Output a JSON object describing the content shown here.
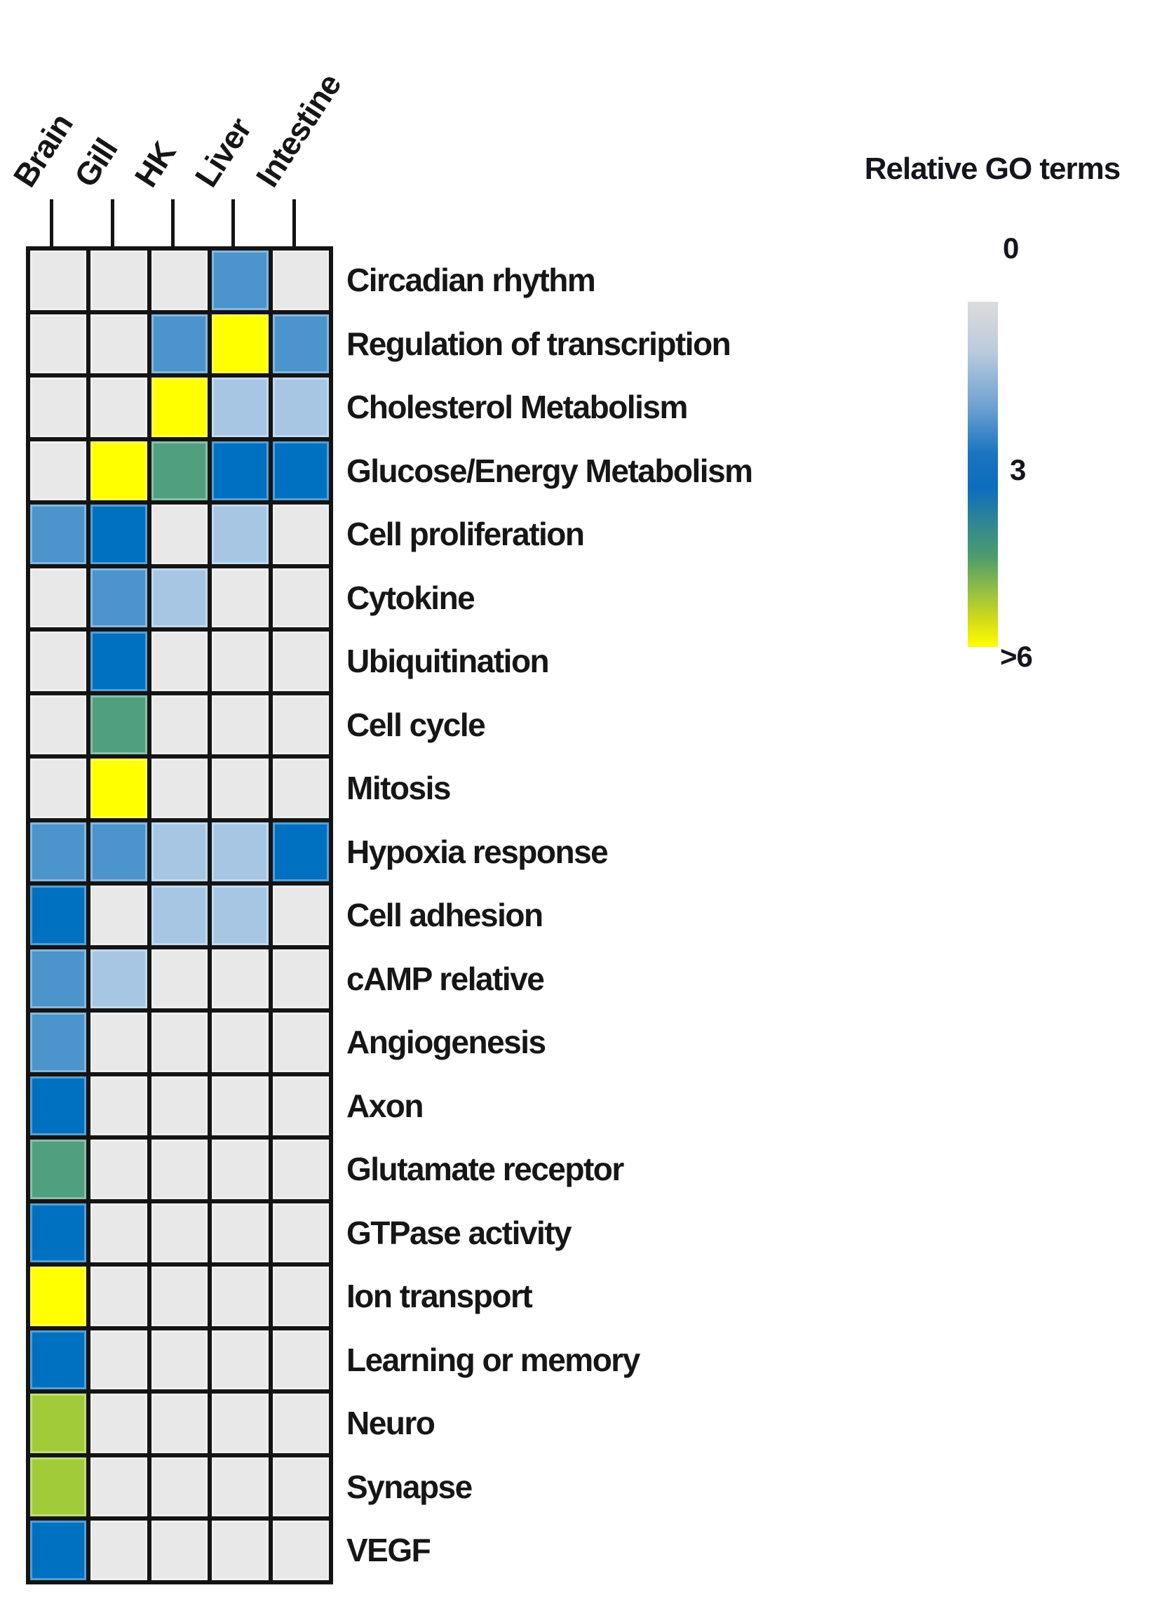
{
  "chart_data": {
    "type": "heatmap",
    "title": "Relative GO terms",
    "columns": [
      "Brain",
      "Gill",
      "HK",
      "Liver",
      "Intestine"
    ],
    "rows": [
      "Circadian rhythm",
      "Regulation of transcription",
      "Cholesterol Metabolism",
      "Glucose/Energy Metabolism",
      "Cell proliferation",
      "Cytokine",
      "Ubiquitination",
      "Cell cycle",
      "Mitosis",
      "Hypoxia response",
      "Cell adhesion",
      "cAMP relative",
      "Angiogenesis",
      "Axon",
      "Glutamate receptor",
      "GTPase activity",
      "Ion transport",
      "Learning or memory",
      "Neuro",
      "Synapse",
      "VEGF"
    ],
    "values": [
      [
        0,
        0,
        0,
        2,
        0
      ],
      [
        0,
        0,
        2,
        7,
        2
      ],
      [
        0,
        0,
        7,
        1,
        1
      ],
      [
        0,
        7,
        4.5,
        3,
        3
      ],
      [
        2,
        3,
        0,
        1,
        0
      ],
      [
        0,
        2,
        1,
        0,
        0
      ],
      [
        0,
        3,
        0,
        0,
        0
      ],
      [
        0,
        4.5,
        0,
        0,
        0
      ],
      [
        0,
        7,
        0,
        0,
        0
      ],
      [
        2,
        2,
        1,
        1,
        3
      ],
      [
        3,
        0,
        1,
        1,
        0
      ],
      [
        2,
        1,
        0,
        0,
        0
      ],
      [
        2,
        0,
        0,
        0,
        0
      ],
      [
        3,
        0,
        0,
        0,
        0
      ],
      [
        4.5,
        0,
        0,
        0,
        0
      ],
      [
        3,
        0,
        0,
        0,
        0
      ],
      [
        7,
        0,
        0,
        0,
        0
      ],
      [
        3,
        0,
        0,
        0,
        0
      ],
      [
        5.5,
        0,
        0,
        0,
        0
      ],
      [
        5.5,
        0,
        0,
        0,
        0
      ],
      [
        3,
        0,
        0,
        0,
        0
      ]
    ],
    "value_colors": {
      "0": "#E8E8E8",
      "1": "#A6C6E4",
      "2": "#4B94CC",
      "3": "#0070C0",
      "4.5": "#50A080",
      "5.5": "#A2CB3A",
      "7": "#FFFF00"
    },
    "colorbar": {
      "top_label": "0",
      "mid_label": "3",
      "bottom_label": ">6",
      "gradient": [
        "#DCDCDC 0%",
        "#BCCBDC 14%",
        "#6FA3D2 30%",
        "#1B74C0 44%",
        "#0C6DBE 54%",
        "#2F8793 64%",
        "#4F9C6B 74%",
        "#96C043 84%",
        "#D8DE15 93%",
        "#FFFF00 100%"
      ]
    },
    "legend_position": "right",
    "xlabel": "",
    "ylabel": "",
    "grid": true
  },
  "styles": {
    "grid_border": "#141414",
    "text": "#161616",
    "background": "#FFFFFF"
  }
}
